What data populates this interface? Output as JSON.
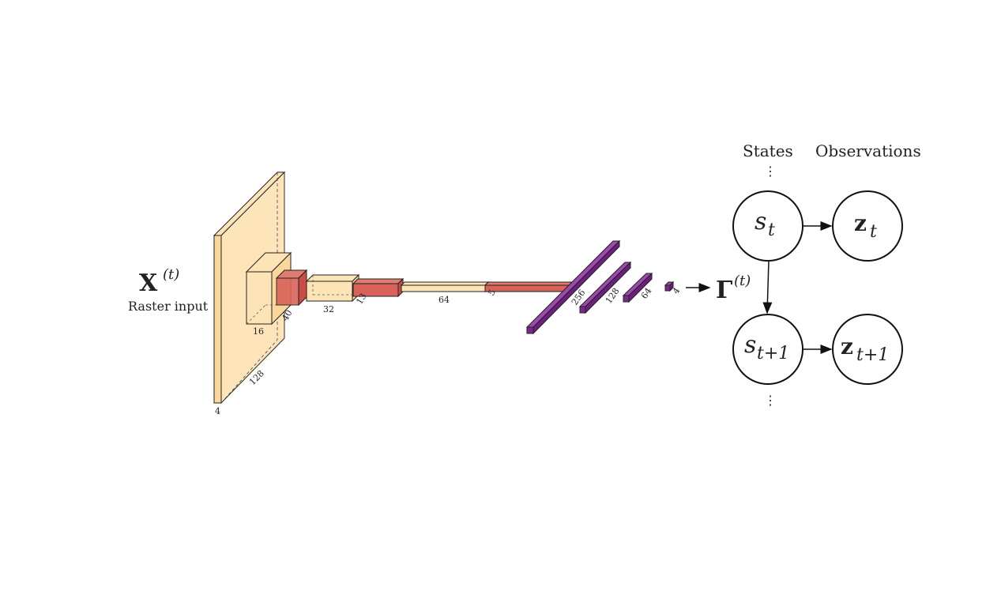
{
  "input": {
    "symbol": "X",
    "superscript": "(t)",
    "caption": "Raster input",
    "depth_label": "4",
    "width_label": "128"
  },
  "layers": {
    "conv1_label": "16",
    "conv1_side_label": "40",
    "conv2_label": "32",
    "conv2_side_label": "13",
    "conv3_label": "64",
    "conv3_side_label": "5",
    "fc1_label": "256",
    "fc2_label": "128",
    "fc3_label": "64",
    "out_label": "4"
  },
  "output": {
    "symbol": "Γ",
    "superscript": "(t)"
  },
  "graph": {
    "states_header": "States",
    "observations_header": "Observations",
    "dots_top": "⋮",
    "dots_bottom": "⋮",
    "state_t_base": "s",
    "state_t_sub": "t",
    "state_t1_base": "s",
    "state_t1_sub": "t+1",
    "obs_t_base": "z",
    "obs_t_sub": "t",
    "obs_t1_base": "z",
    "obs_t1_sub": "t+1"
  },
  "colors": {
    "cream": "#fde4b6",
    "cream_stroke": "#222222",
    "red": "#d9635a",
    "purple": "#7a2a8c"
  }
}
